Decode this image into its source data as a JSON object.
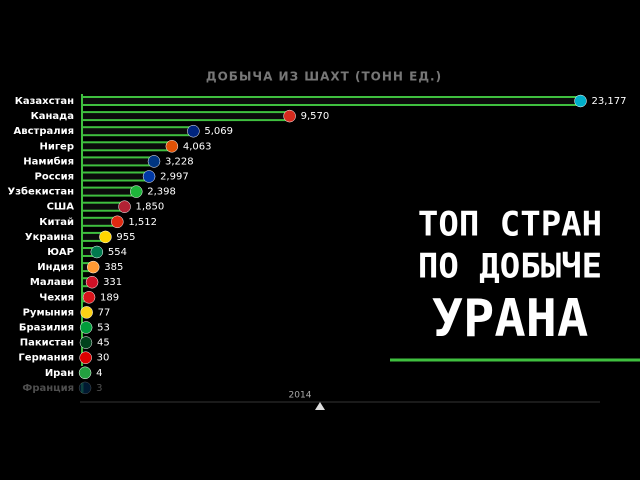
{
  "chart_data": {
    "type": "bar",
    "orientation": "horizontal",
    "title": "ДОБЫЧА ИЗ ШАХТ (ТОНН ЕД.)",
    "year": "2014",
    "headline": [
      "ТОП СТРАН",
      "ПО ДОБЫЧЕ",
      "УРАНА"
    ],
    "categories": [
      "Казахстан",
      "Канада",
      "Австралия",
      "Нигер",
      "Намибия",
      "Россия",
      "Узбекистан",
      "США",
      "Китай",
      "Украина",
      "ЮАР",
      "Индия",
      "Малави",
      "Чехия",
      "Румыния",
      "Бразилия",
      "Пакистан",
      "Германия",
      "Иран",
      "Франция"
    ],
    "values": [
      23177,
      9570,
      5069,
      4063,
      3228,
      2997,
      2398,
      1850,
      1512,
      955,
      554,
      385,
      331,
      189,
      77,
      53,
      45,
      30,
      4,
      3
    ],
    "value_labels": [
      "23,177",
      "9,570",
      "5,069",
      "4,063",
      "3,228",
      "2,997",
      "2,398",
      "1,850",
      "1,512",
      "955",
      "554",
      "385",
      "331",
      "189",
      "77",
      "53",
      "45",
      "30",
      "4",
      "3"
    ],
    "color": "#3fbf3f",
    "xlim": [
      0,
      23200
    ]
  }
}
